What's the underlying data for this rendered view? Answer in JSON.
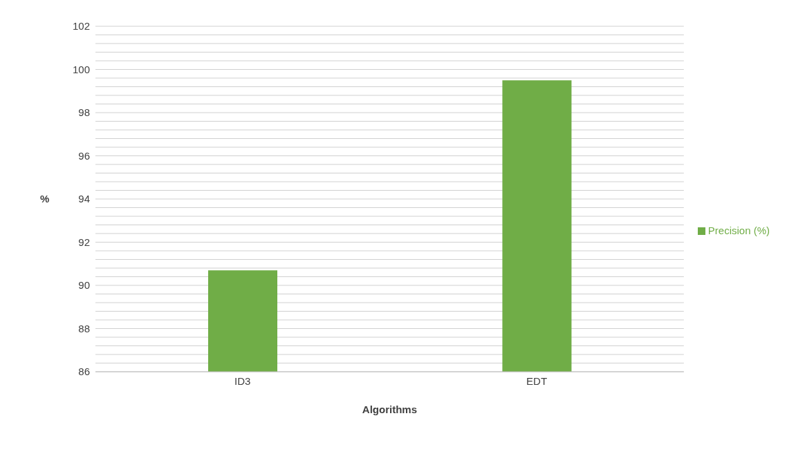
{
  "chart_data": {
    "type": "bar",
    "xlabel": "Algorithms",
    "ylabel": "%",
    "categories": [
      "ID3",
      "EDT"
    ],
    "series": [
      {
        "name": "Precision (%)",
        "color": "#70ad47",
        "values": [
          90.7,
          99.5
        ]
      }
    ],
    "ylim": [
      86,
      102
    ],
    "yticks": [
      86,
      {
        "value": 86.4,
        "label": null
      },
      {
        "value": 86.8,
        "label": null
      },
      {
        "value": 87.2,
        "label": null
      },
      {
        "value": 87.6,
        "label": null
      },
      88,
      {
        "value": 88.4,
        "label": null
      },
      {
        "value": 88.8,
        "label": null
      },
      {
        "value": 89.2,
        "label": null
      },
      {
        "value": 89.6,
        "label": null
      },
      90,
      {
        "value": 90.4,
        "label": null
      },
      {
        "value": 90.8,
        "label": null
      },
      {
        "value": 91.2,
        "label": null
      },
      {
        "value": 91.6,
        "label": null
      },
      92,
      {
        "value": 92.4,
        "label": null
      },
      {
        "value": 92.8,
        "label": null
      },
      {
        "value": 93.2,
        "label": null
      },
      {
        "value": 93.6,
        "label": null
      },
      94,
      {
        "value": 94.4,
        "label": null
      },
      {
        "value": 94.8,
        "label": null
      },
      {
        "value": 95.2,
        "label": null
      },
      {
        "value": 95.6,
        "label": null
      },
      96,
      {
        "value": 96.4,
        "label": null
      },
      {
        "value": 96.8,
        "label": null
      },
      {
        "value": 97.2,
        "label": null
      },
      {
        "value": 97.6,
        "label": null
      },
      98,
      {
        "value": 98.4,
        "label": null
      },
      {
        "value": 98.8,
        "label": null
      },
      {
        "value": 99.2,
        "label": null
      },
      {
        "value": 99.6,
        "label": null
      },
      100,
      {
        "value": 100.4,
        "label": null
      },
      {
        "value": 100.8,
        "label": null
      },
      {
        "value": 101.2,
        "label": null
      },
      {
        "value": 101.6,
        "label": null
      },
      102
    ],
    "grid": "y",
    "legend": "right"
  }
}
